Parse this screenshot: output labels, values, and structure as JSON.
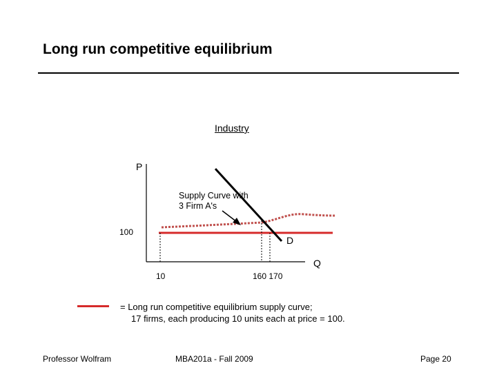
{
  "slide": {
    "title": "Long run competitive equilibrium"
  },
  "diagram": {
    "panel_label": "Industry",
    "y_axis_label": "P",
    "x_axis_label": "Q",
    "price_label": "100",
    "demand_label": "D",
    "quantity_ticks": [
      "10",
      "160 170"
    ],
    "annotation_line1": "Supply Curve with",
    "annotation_line2": "3 Firm A's",
    "colors": {
      "lr_supply": "#d62a2a",
      "sr_supply_dotted": "#c0504d",
      "axes": "#000000"
    }
  },
  "legend": {
    "line1": "= Long run competitive equilibrium supply curve;",
    "line2": "17 firms, each producing 10 units each at price = 100."
  },
  "footer": {
    "left": "Professor Wolfram",
    "center": "MBA201a - Fall 2009",
    "right": "Page 20"
  }
}
